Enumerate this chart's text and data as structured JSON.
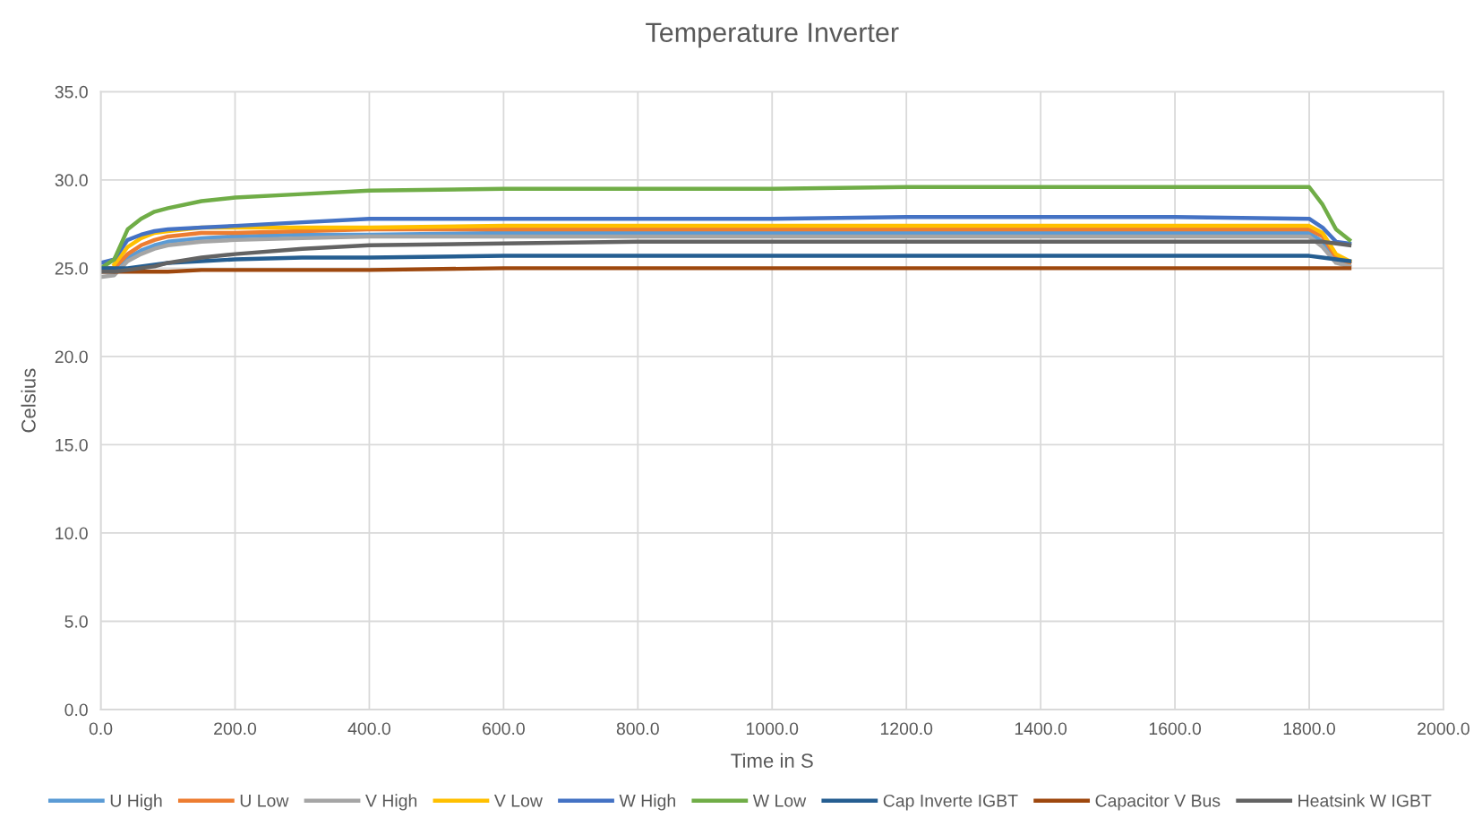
{
  "chart_data": {
    "type": "line",
    "title": "Temperature Inverter",
    "xlabel": "Time in S",
    "ylabel": "Celsius",
    "x": [
      0,
      20,
      40,
      60,
      80,
      100,
      150,
      200,
      300,
      400,
      600,
      800,
      1000,
      1200,
      1400,
      1600,
      1800,
      1820,
      1840,
      1860
    ],
    "series": [
      {
        "name": "U High",
        "color": "#5b9bd5",
        "values": [
          25.0,
          25.0,
          25.6,
          26.0,
          26.3,
          26.5,
          26.7,
          26.8,
          26.9,
          26.9,
          27.0,
          27.0,
          27.0,
          27.0,
          27.0,
          27.0,
          27.0,
          26.5,
          25.5,
          25.3
        ]
      },
      {
        "name": "U Low",
        "color": "#ed7d31",
        "values": [
          25.0,
          25.0,
          25.8,
          26.3,
          26.6,
          26.8,
          27.0,
          27.0,
          27.1,
          27.2,
          27.2,
          27.2,
          27.2,
          27.2,
          27.2,
          27.2,
          27.2,
          26.8,
          25.6,
          25.3
        ]
      },
      {
        "name": "V High",
        "color": "#a5a5a5",
        "values": [
          24.5,
          24.6,
          25.4,
          25.8,
          26.1,
          26.3,
          26.5,
          26.6,
          26.7,
          26.8,
          26.8,
          26.8,
          26.8,
          26.8,
          26.8,
          26.8,
          26.8,
          26.2,
          25.3,
          25.1
        ]
      },
      {
        "name": "V Low",
        "color": "#ffc000",
        "values": [
          null,
          25.2,
          26.2,
          26.7,
          27.0,
          27.1,
          27.3,
          27.3,
          27.3,
          27.3,
          27.4,
          27.4,
          27.4,
          27.4,
          27.4,
          27.4,
          27.4,
          27.0,
          25.8,
          25.4
        ]
      },
      {
        "name": "W High",
        "color": "#4472c4",
        "values": [
          25.3,
          25.5,
          26.6,
          26.9,
          27.1,
          27.2,
          27.3,
          27.4,
          27.6,
          27.8,
          27.8,
          27.8,
          27.8,
          27.9,
          27.9,
          27.9,
          27.8,
          27.3,
          26.5,
          26.4
        ]
      },
      {
        "name": "W Low",
        "color": "#70ad47",
        "values": [
          25.0,
          25.5,
          27.2,
          27.8,
          28.2,
          28.4,
          28.8,
          29.0,
          29.2,
          29.4,
          29.5,
          29.5,
          29.5,
          29.6,
          29.6,
          29.6,
          29.6,
          28.6,
          27.2,
          26.6
        ]
      },
      {
        "name": "Cap Inverte IGBT",
        "color": "#255e91",
        "values": [
          25.0,
          25.0,
          25.0,
          25.1,
          25.2,
          25.3,
          25.4,
          25.5,
          25.6,
          25.6,
          25.7,
          25.7,
          25.7,
          25.7,
          25.7,
          25.7,
          25.7,
          25.6,
          25.5,
          25.4
        ]
      },
      {
        "name": "Capacitor V Bus",
        "color": "#9e480e",
        "values": [
          24.8,
          24.8,
          24.8,
          24.8,
          24.8,
          24.8,
          24.9,
          24.9,
          24.9,
          24.9,
          25.0,
          25.0,
          25.0,
          25.0,
          25.0,
          25.0,
          25.0,
          25.0,
          25.0,
          25.0
        ]
      },
      {
        "name": "Heatsink W IGBT",
        "color": "#636363",
        "values": [
          24.8,
          24.8,
          24.9,
          25.0,
          25.1,
          25.3,
          25.6,
          25.8,
          26.1,
          26.3,
          26.4,
          26.5,
          26.5,
          26.5,
          26.5,
          26.5,
          26.5,
          26.5,
          26.4,
          26.3
        ]
      }
    ],
    "xlim": [
      0,
      2000
    ],
    "xticks": [
      {
        "value": 0,
        "label": "0.0"
      },
      {
        "value": 200,
        "label": "200.0"
      },
      {
        "value": 400,
        "label": "400.0"
      },
      {
        "value": 600,
        "label": "600.0"
      },
      {
        "value": 800,
        "label": "800.0"
      },
      {
        "value": 1000,
        "label": "1000.0"
      },
      {
        "value": 1200,
        "label": "1200.0"
      },
      {
        "value": 1400,
        "label": "1400.0"
      },
      {
        "value": 1600,
        "label": "1600.0"
      },
      {
        "value": 1800,
        "label": "1800.0"
      },
      {
        "value": 2000,
        "label": "2000.0"
      }
    ],
    "ylim": [
      0,
      35
    ],
    "yticks": [
      {
        "value": 0,
        "label": "0.0"
      },
      {
        "value": 5,
        "label": "5.0"
      },
      {
        "value": 10,
        "label": "10.0"
      },
      {
        "value": 15,
        "label": "15.0"
      },
      {
        "value": 20,
        "label": "20.0"
      },
      {
        "value": 25,
        "label": "25.0"
      },
      {
        "value": 30,
        "label": "30.0"
      },
      {
        "value": 35,
        "label": "35.0"
      }
    ],
    "grid": true,
    "legend": "bottom",
    "marker": "none",
    "line_style": "solid"
  }
}
